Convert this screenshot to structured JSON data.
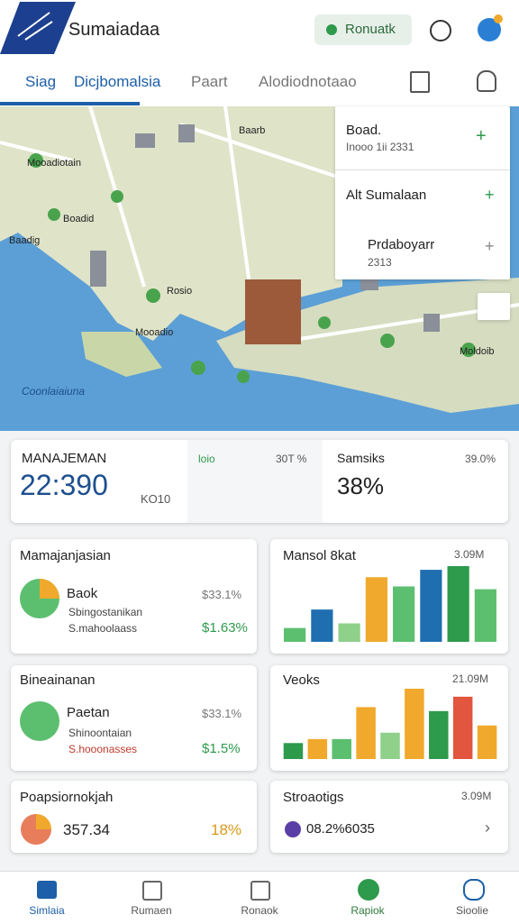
{
  "header": {
    "title": "Sumaiadaa",
    "button": "Ronuatk"
  },
  "tabs": [
    "Siag",
    "Dicjbomalsia",
    "Paart",
    "Alodiodnotaao"
  ],
  "map": {
    "labels": [
      "Mooadiotain",
      "Baarb",
      "Boadid",
      "Baadig",
      "Rosio",
      "Mooadio",
      "Moldoib",
      "Coonlaiaiuna"
    ],
    "panel": [
      {
        "title": "Boad.",
        "subtitle": "Inooo 1ii 2331"
      },
      {
        "title": "Alt Sumalaan"
      },
      {
        "title": "Prdaboyarr",
        "subtitle": "2313"
      }
    ]
  },
  "summary": {
    "title": "MANAJEMAN",
    "value": "22:390",
    "unit": "KO10",
    "middle_label": "loio",
    "middle_value": "30T %",
    "right_title": "Samsiks",
    "right_value": "38%",
    "right_note": "39.0%"
  },
  "cards": [
    {
      "title": "Mamajanjasian",
      "item": "Baok",
      "line1": "Sbingostanikan",
      "line2": "S.mahoolaass",
      "value1": "$33.1%",
      "value2": "$1.63%"
    },
    {
      "title": "Mansol 8kat",
      "value": "3.09M",
      "bars": [
        {
          "value": 15,
          "color": "#5cbf6f"
        },
        {
          "value": 35,
          "color": "#1f6fb0"
        },
        {
          "value": 20,
          "color": "#8fd08a"
        },
        {
          "value": 70,
          "color": "#f0a92c"
        },
        {
          "value": 60,
          "color": "#5cbf6f"
        },
        {
          "value": 78,
          "color": "#1f6fb0"
        },
        {
          "value": 82,
          "color": "#2e9a4c"
        },
        {
          "value": 57,
          "color": "#5cbf6f"
        }
      ]
    },
    {
      "title": "Bineainanan",
      "item": "Paetan",
      "line1": "Shinoontaian",
      "line2": "S.hooonasses",
      "value1": "$33.1%",
      "value2": "$1.5%"
    },
    {
      "title": "Veoks",
      "value": "21.09M",
      "bars": [
        {
          "value": 20,
          "color": "#2e9a4c"
        },
        {
          "value": 25,
          "color": "#f0a92c"
        },
        {
          "value": 25,
          "color": "#5cbf6f"
        },
        {
          "value": 65,
          "color": "#f0a92c"
        },
        {
          "value": 33,
          "color": "#8fd08a"
        },
        {
          "value": 88,
          "color": "#f0a92c"
        },
        {
          "value": 60,
          "color": "#2e9a4c"
        },
        {
          "value": 78,
          "color": "#e2553e"
        },
        {
          "value": 42,
          "color": "#f0a92c"
        }
      ]
    },
    {
      "title": "Poapsiornokjah",
      "value1": "357.34",
      "value2": "18%"
    },
    {
      "title": "Stroaotigs",
      "value": "3.09M",
      "line1": "08.2%6035"
    }
  ],
  "nav": [
    "Simlaia",
    "Rumaen",
    "Ronaok",
    "Rapiok",
    "Sioolie"
  ]
}
